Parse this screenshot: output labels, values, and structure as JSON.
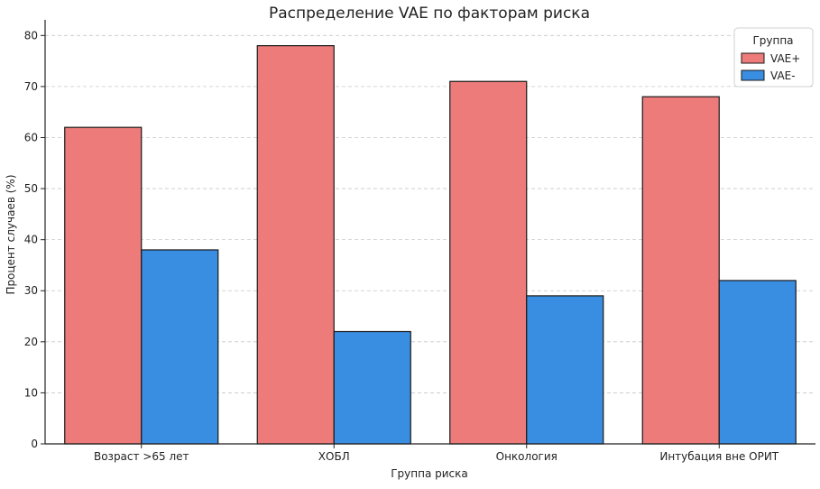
{
  "chart_data": {
    "type": "bar",
    "title": "Распределение VAE по факторам риска",
    "xlabel": "Группа риска",
    "ylabel": "Процент случаев (%)",
    "categories": [
      "Возраст >65 лет",
      "ХОБЛ",
      "Онкология",
      "Интубация вне ОРИТ"
    ],
    "series": [
      {
        "name": "VAE+",
        "values": [
          62,
          78,
          71,
          68
        ],
        "color": "#ec7b7a"
      },
      {
        "name": "VAE-",
        "values": [
          38,
          22,
          29,
          32
        ],
        "color": "#3a8ee1"
      }
    ],
    "ylim": [
      0,
      82
    ],
    "yticks": [
      0,
      10,
      20,
      30,
      40,
      50,
      60,
      70,
      80
    ],
    "grid": "y-dashed",
    "legend": {
      "title": "Группа",
      "placement": "top-right"
    }
  }
}
